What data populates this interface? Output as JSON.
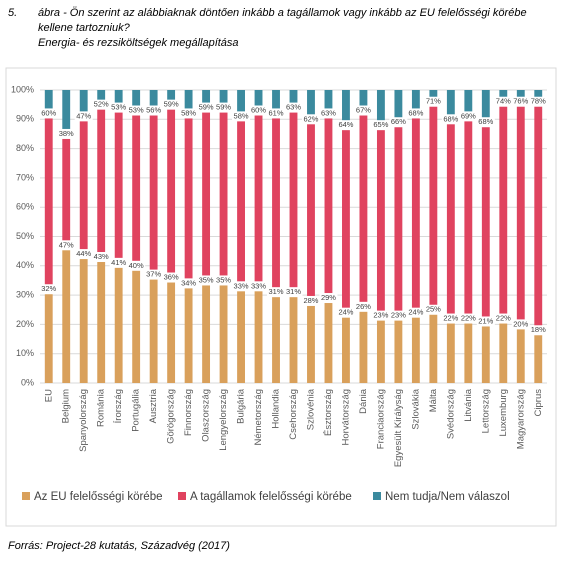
{
  "chart_data": {
    "type": "stacked-bar",
    "figure_number": "5.",
    "title": "ábra - Ön szerint az alábbiaknak döntően inkább a tagállamok vagy inkább az EU felelősségi körébe kellene tartozniuk?",
    "subtitle": "Energia- és rezsiköltségek megállapítása",
    "source": "Forrás: Project-28 kutatás, Századvég (2017)",
    "categories": [
      "EU",
      "Belgium",
      "Spanyolország",
      "Románia",
      "Írország",
      "Portugália",
      "Ausztria",
      "Görögország",
      "Finnország",
      "Olaszország",
      "Lengyelország",
      "Bulgária",
      "Németország",
      "Hollandia",
      "Csehország",
      "Szlovénia",
      "Észtország",
      "Horvátország",
      "Dánia",
      "Franciaország",
      "Egyesült Királyság",
      "Szlovákia",
      "Málta",
      "Svédország",
      "Litvánia",
      "Lettország",
      "Luxemburg",
      "Magyarország",
      "Ciprus"
    ],
    "series": [
      {
        "name": "Az EU felelősségi körébe",
        "color": "#d9a05b",
        "values": [
          32,
          47,
          44,
          43,
          41,
          40,
          37,
          36,
          34,
          35,
          35,
          33,
          33,
          31,
          31,
          28,
          29,
          24,
          26,
          23,
          23,
          24,
          25,
          22,
          22,
          21,
          22,
          20,
          18
        ],
        "value_labels": [
          "32%",
          "47%",
          "44%",
          "43%",
          "41%",
          "40%",
          "37%",
          "36%",
          "34%",
          "35%",
          "35%",
          "33%",
          "33%",
          "31%",
          "31%",
          "28%",
          "29%",
          "24%",
          "26%",
          "23%",
          "23%",
          "24%",
          "25%",
          "22%",
          "22%",
          "21%",
          "22%",
          "20%",
          "18%"
        ]
      },
      {
        "name": "A tagállamok felelősségi körébe",
        "color": "#e0435f",
        "values": [
          60,
          38,
          47,
          52,
          53,
          53,
          56,
          59,
          58,
          59,
          59,
          58,
          60,
          61,
          63,
          62,
          63,
          64,
          67,
          65,
          66,
          68,
          71,
          68,
          69,
          68,
          74,
          76,
          78
        ],
        "value_labels": [
          "60%",
          "38%",
          "47%",
          "52%",
          "53%",
          "53%",
          "56%",
          "59%",
          "58%",
          "59%",
          "59%",
          "58%",
          "60%",
          "61%",
          "63%",
          "62%",
          "63%",
          "64%",
          "67%",
          "65%",
          "66%",
          "68%",
          "71%",
          "68%",
          "69%",
          "68%",
          "74%",
          "76%",
          "78%"
        ]
      },
      {
        "name": "Nem tudja/Nem válaszol",
        "color": "#3b8a9e",
        "values": [
          8,
          15,
          9,
          5,
          6,
          7,
          7,
          5,
          8,
          6,
          6,
          9,
          7,
          8,
          6,
          10,
          8,
          12,
          7,
          12,
          11,
          8,
          4,
          10,
          9,
          11,
          4,
          4,
          4
        ]
      }
    ],
    "ylim": [
      0,
      100
    ],
    "yticks": [
      {
        "value": 0,
        "label": "0%"
      },
      {
        "value": 10,
        "label": "10%"
      },
      {
        "value": 20,
        "label": "20%"
      },
      {
        "value": 30,
        "label": "30%"
      },
      {
        "value": 40,
        "label": "40%"
      },
      {
        "value": 50,
        "label": "50%"
      },
      {
        "value": 60,
        "label": "60%"
      },
      {
        "value": 70,
        "label": "70%"
      },
      {
        "value": 80,
        "label": "80%"
      },
      {
        "value": 90,
        "label": "90%"
      },
      {
        "value": 100,
        "label": "100%"
      }
    ],
    "grid": true,
    "legend": "bottom"
  }
}
